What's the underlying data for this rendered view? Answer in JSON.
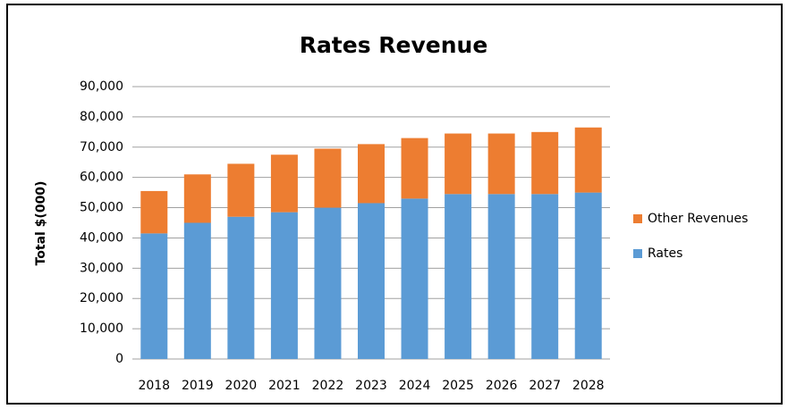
{
  "chart_data": {
    "type": "stacked_bar",
    "title": "Rates Revenue",
    "y_label": "Total $(000)",
    "categories": [
      "2018",
      "2019",
      "2020",
      "2021",
      "2022",
      "2023",
      "2024",
      "2025",
      "2026",
      "2027",
      "2028"
    ],
    "series": [
      {
        "name": "Rates",
        "color": "#5b9bd5",
        "values": [
          41500,
          45000,
          47000,
          48500,
          50000,
          51500,
          53000,
          54500,
          54500,
          54500,
          55000
        ]
      },
      {
        "name": "Other Revenues",
        "color": "#ed7d31",
        "values": [
          14000,
          16000,
          17500,
          19000,
          19500,
          19500,
          20000,
          20000,
          20000,
          20500,
          21500
        ]
      }
    ],
    "ylim": [
      0,
      90000
    ],
    "yticks": [
      0,
      {
        "value": 10000,
        "label": "10,000"
      },
      {
        "value": 20000,
        "label": "20,000"
      },
      {
        "value": 30000,
        "label": "30,000"
      },
      {
        "value": 40000,
        "label": "40,000"
      },
      {
        "value": 50000,
        "label": "50,000"
      },
      {
        "value": 60000,
        "label": "60,000"
      },
      {
        "value": 70000,
        "label": "70,000"
      },
      {
        "value": 80000,
        "label": "80,000"
      },
      {
        "value": 90000,
        "label": "90,000"
      }
    ],
    "grid": true,
    "legend": "right"
  }
}
